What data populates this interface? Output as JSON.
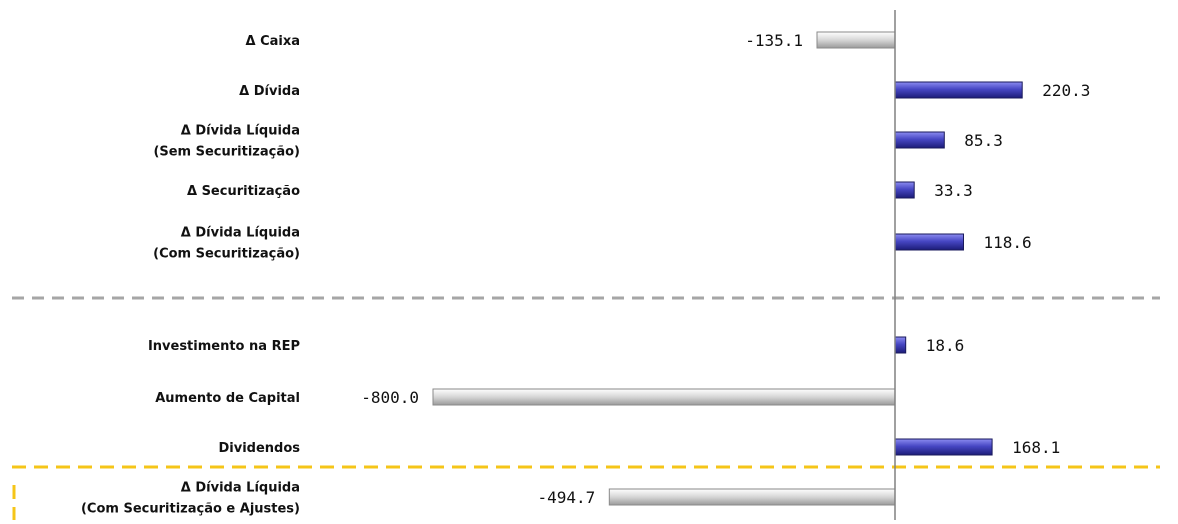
{
  "chart_data": {
    "type": "bar",
    "orientation": "horizontal",
    "title": "",
    "xlabel": "",
    "ylabel": "",
    "xlim": [
      -820,
      540
    ],
    "grid": false,
    "legend": "none",
    "categories": [
      [
        "Δ Caixa"
      ],
      [
        "Δ Dívida"
      ],
      [
        "Δ Dívida Líquida",
        "(Sem Securitização)"
      ],
      [
        "Δ Securitização"
      ],
      [
        "Δ Dívida Líquida",
        "(Com Securitização)"
      ],
      [
        "Investimento na REP"
      ],
      [
        "Aumento de Capital"
      ],
      [
        "Dividendos"
      ],
      [
        "Δ Dívida Líquida",
        "(Com Securitização e Ajustes)"
      ]
    ],
    "values": [
      -135.1,
      220.3,
      85.3,
      33.3,
      118.6,
      18.6,
      -800.0,
      168.1,
      -494.7
    ],
    "value_labels": [
      "-135.1",
      "220.3",
      "85.3",
      "33.3",
      "118.6",
      "18.6",
      "-800.0",
      "168.1",
      "-494.7"
    ],
    "colors": {
      "positive": "#3a3aa8",
      "negative": "#cfcfcf",
      "separator": "#a6a6a6",
      "highlight_border": "#f5c518",
      "axis": "#808080"
    }
  }
}
